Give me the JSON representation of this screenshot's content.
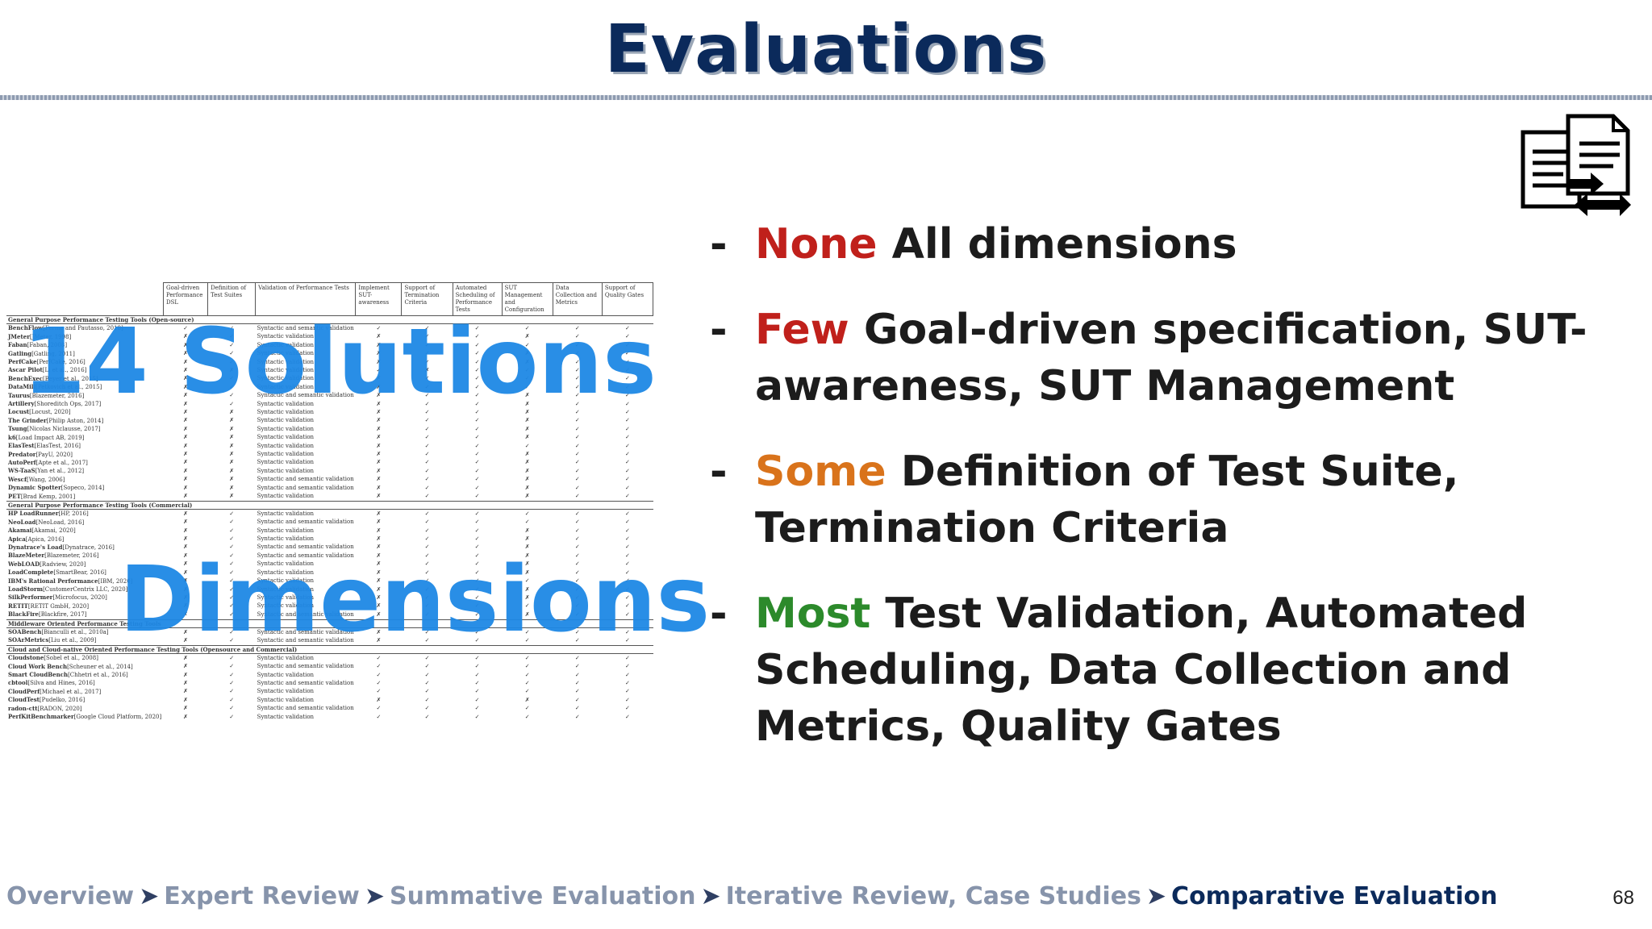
{
  "title": "Evaluations",
  "bullets": [
    {
      "dash": "-",
      "keyword": "None",
      "text": " All dimensions",
      "color": "#c0201b"
    },
    {
      "dash": "-",
      "keyword": "Few",
      "text": " Goal-driven specification, SUT-awareness, SUT Management",
      "color": "#c0201b"
    },
    {
      "dash": "-",
      "keyword": "Some",
      "text": " Definition of Test Suite, Termination Criteria",
      "color": "#d9731b"
    },
    {
      "dash": "-",
      "keyword": "Most",
      "text": " Test Validation, Automated Scheduling, Data Collection and Metrics, Quality Gates",
      "color": "#2c8a2b"
    }
  ],
  "overlay": {
    "solutions": "14 Solutions",
    "dimensions": "Dimensions"
  },
  "table": {
    "headers": [
      "Goal-driven Performance DSL",
      "Definition of Test Suites",
      "Validation of Performance Tests",
      "Implement SUT-awareness",
      "Support of Termination Criteria",
      "Automated Scheduling of Performance Tests",
      "SUT Management and Configuration",
      "Data Collection and Metrics",
      "Support of Quality Gates"
    ],
    "sections": [
      {
        "category": "General Purpose Performance Testing Tools (Open-source)",
        "rows": [
          {
            "name": "BenchFlow",
            "ref": "[Ferme and Pautasso, 2018]",
            "marks": [
              "✓",
              "✓",
              "Syntactic and semantic validation",
              "✓",
              "✓",
              "✓",
              "✓",
              "✓",
              "✓"
            ]
          },
          {
            "name": "JMeter",
            "ref": "[JMeter, 1998]",
            "marks": [
              "✗",
              "✓",
              "Syntactic validation",
              "✗",
              "✓",
              "✓",
              "✗",
              "✓",
              "✓"
            ]
          },
          {
            "name": "Faban",
            "ref": "[Faban, 2008]",
            "marks": [
              "✗",
              "✓",
              "Syntactic validation",
              "✗",
              "✓",
              "✓",
              "✓",
              "✓",
              "✓"
            ]
          },
          {
            "name": "Gatling",
            "ref": "[Gatling, 2011]",
            "marks": [
              "✗",
              "✓",
              "Syntactic validation",
              "✗",
              "✓",
              "✓",
              "✗",
              "✓",
              "✓"
            ]
          },
          {
            "name": "PerfCake",
            "ref": "[PerfCake, 2016]",
            "marks": [
              "✗",
              "✓",
              "Syntactic validation",
              "✗",
              "✓",
              "✓",
              "✗",
              "✓",
              "✓"
            ]
          },
          {
            "name": "Ascar Pilot",
            "ref": "[Li et al., 2016]",
            "marks": [
              "✗",
              "✗",
              "Syntactic validation",
              "✓",
              "✗",
              "✓",
              "✓",
              "✓",
              "✓"
            ]
          },
          {
            "name": "BenchExec",
            "ref": "[Beyer et al., 2015]",
            "marks": [
              "✗",
              "✓",
              "Syntactic validation",
              "✗",
              "✓",
              "✓",
              "✓",
              "✓",
              "✓"
            ]
          },
          {
            "name": "DataMill",
            "ref": "[Petkovich et al., 2015]",
            "marks": [
              "✗",
              "✓",
              "Syntactic validation",
              "✗",
              "✓",
              "✓",
              "✓",
              "✓",
              "✓"
            ]
          },
          {
            "name": "Taurus",
            "ref": "[Blazemeter, 2016]",
            "marks": [
              "✗",
              "✓",
              "Syntactic and semantic validation",
              "✗",
              "✓",
              "✓",
              "✗",
              "✓",
              "✓"
            ]
          },
          {
            "name": "Artillery",
            "ref": "[Shoreditch Ops, 2017]",
            "marks": [
              "✗",
              "✓",
              "Syntactic validation",
              "✗",
              "✓",
              "✓",
              "✗",
              "✓",
              "✓"
            ]
          },
          {
            "name": "Locust",
            "ref": "[Locust, 2020]",
            "marks": [
              "✗",
              "✗",
              "Syntactic validation",
              "✗",
              "✓",
              "✓",
              "✗",
              "✓",
              "✓"
            ]
          },
          {
            "name": "The Grinder",
            "ref": "[Philip Aston, 2014]",
            "marks": [
              "✗",
              "✗",
              "Syntactic validation",
              "✗",
              "✓",
              "✓",
              "✗",
              "✓",
              "✓"
            ]
          },
          {
            "name": "Tsung",
            "ref": "[Nicolas Niclausse, 2017]",
            "marks": [
              "✗",
              "✗",
              "Syntactic validation",
              "✗",
              "✓",
              "✓",
              "✗",
              "✓",
              "✓"
            ]
          },
          {
            "name": "k6",
            "ref": "[Load Impact AB, 2019]",
            "marks": [
              "✗",
              "✗",
              "Syntactic validation",
              "✗",
              "✓",
              "✓",
              "✗",
              "✓",
              "✓"
            ]
          },
          {
            "name": "ElasTest",
            "ref": "[ElasTest, 2016]",
            "marks": [
              "✗",
              "✗",
              "Syntactic validation",
              "✗",
              "✓",
              "✓",
              "✓",
              "✓",
              "✓"
            ]
          },
          {
            "name": "Predator",
            "ref": "[PayU, 2020]",
            "marks": [
              "✗",
              "✗",
              "Syntactic validation",
              "✗",
              "✓",
              "✓",
              "✗",
              "✓",
              "✓"
            ]
          },
          {
            "name": "AutoPerf",
            "ref": "[Apte et al., 2017]",
            "marks": [
              "✗",
              "✗",
              "Syntactic validation",
              "✗",
              "✓",
              "✓",
              "✗",
              "✓",
              "✓"
            ]
          },
          {
            "name": "WS-TaaS",
            "ref": "[Yan et al., 2012]",
            "marks": [
              "✗",
              "✗",
              "Syntactic validation",
              "✗",
              "✓",
              "✓",
              "✗",
              "✓",
              "✓"
            ]
          },
          {
            "name": "Wescf",
            "ref": "[Wang, 2006]",
            "marks": [
              "✗",
              "✗",
              "Syntactic and semantic validation",
              "✗",
              "✓",
              "✓",
              "✗",
              "✓",
              "✓"
            ]
          },
          {
            "name": "Dynamic Spotter",
            "ref": "[Sopeco, 2014]",
            "marks": [
              "✗",
              "✗",
              "Syntactic and semantic validation",
              "✗",
              "✓",
              "✓",
              "✗",
              "✓",
              "✓"
            ]
          },
          {
            "name": "PET",
            "ref": "[Brad Kemp, 2001]",
            "marks": [
              "✗",
              "✗",
              "Syntactic validation",
              "✗",
              "✓",
              "✓",
              "✗",
              "✓",
              "✓"
            ]
          }
        ]
      },
      {
        "category": "General Purpose Performance Testing Tools (Commercial)",
        "rows": [
          {
            "name": "HP LoadRunner",
            "ref": "[HP, 2016]",
            "marks": [
              "✗",
              "✓",
              "Syntactic validation",
              "✗",
              "✓",
              "✓",
              "✓",
              "✓",
              "✓"
            ]
          },
          {
            "name": "NeoLoad",
            "ref": "[NeoLoad, 2016]",
            "marks": [
              "✗",
              "✓",
              "Syntactic and semantic validation",
              "✗",
              "✓",
              "✓",
              "✓",
              "✓",
              "✓"
            ]
          },
          {
            "name": "Akamai",
            "ref": "[Akamai, 2020]",
            "marks": [
              "✗",
              "✓",
              "Syntactic validation",
              "✗",
              "✓",
              "✓",
              "✗",
              "✓",
              "✓"
            ]
          },
          {
            "name": "Apica",
            "ref": "[Apica, 2016]",
            "marks": [
              "✗",
              "✓",
              "Syntactic validation",
              "✗",
              "✓",
              "✓",
              "✗",
              "✓",
              "✓"
            ]
          },
          {
            "name": "Dynatrace's Load",
            "ref": "[Dynatrace, 2016]",
            "marks": [
              "✗",
              "✓",
              "Syntactic and semantic validation",
              "✗",
              "✓",
              "✓",
              "✗",
              "✓",
              "✓"
            ]
          },
          {
            "name": "BlazeMeter",
            "ref": "[Blazemeter, 2016]",
            "marks": [
              "✗",
              "✓",
              "Syntactic and semantic validation",
              "✗",
              "✓",
              "✓",
              "✗",
              "✓",
              "✓"
            ]
          },
          {
            "name": "WebLOAD",
            "ref": "[Radview, 2020]",
            "marks": [
              "✗",
              "✓",
              "Syntactic validation",
              "✗",
              "✓",
              "✓",
              "✗",
              "✓",
              "✓"
            ]
          },
          {
            "name": "LoadComplete",
            "ref": "[SmartBear, 2016]",
            "marks": [
              "✗",
              "✓",
              "Syntactic validation",
              "✗",
              "✓",
              "✓",
              "✗",
              "✓",
              "✓"
            ]
          },
          {
            "name": "IBM's Rational Performance",
            "ref": "[IBM, 2020]",
            "marks": [
              "✗",
              "✓",
              "Syntactic validation",
              "✗",
              "✓",
              "✓",
              "✓",
              "✓",
              "✓"
            ]
          },
          {
            "name": "LoadStorm",
            "ref": "[CustomerCentrix LLC, 2020]",
            "marks": [
              "✗",
              "✓",
              "Syntactic validation",
              "✗",
              "✓",
              "✓",
              "✗",
              "✓",
              "✓"
            ]
          },
          {
            "name": "SilkPerformer",
            "ref": "[Microfocus, 2020]",
            "marks": [
              "✗",
              "✓",
              "Syntactic validation",
              "✗",
              "✓",
              "✓",
              "✗",
              "✓",
              "✓"
            ]
          },
          {
            "name": "RETIT",
            "ref": "[RETIT GmbH, 2020]",
            "marks": [
              "✗",
              "✓",
              "Syntactic validation",
              "✗",
              "✓",
              "✓",
              "✓",
              "✓",
              "✓"
            ]
          },
          {
            "name": "BlackFire",
            "ref": "[Blackfire, 2017]",
            "marks": [
              "✗",
              "✓",
              "Syntactic and semantic validation",
              "✗",
              "✓",
              "✓",
              "✗",
              "✓",
              "✓"
            ]
          }
        ]
      },
      {
        "category": "Middleware Oriented Performance Testing Tools",
        "rows": [
          {
            "name": "SOABench",
            "ref": "[Bianculli et al., 2010a]",
            "marks": [
              "✗",
              "✓",
              "Syntactic and semantic validation",
              "✗",
              "✓",
              "✓",
              "✓",
              "✓",
              "✓"
            ]
          },
          {
            "name": "SOArMetrics",
            "ref": "[Liu et al., 2009]",
            "marks": [
              "✗",
              "✓",
              "Syntactic and semantic validation",
              "✗",
              "✓",
              "✓",
              "✓",
              "✓",
              "✓"
            ]
          }
        ]
      },
      {
        "category": "Cloud and Cloud-native Oriented Performance Testing Tools (Opensource and Commercial)",
        "rows": [
          {
            "name": "Cloudstone",
            "ref": "[Sobel et al., 2008]",
            "marks": [
              "✗",
              "✓",
              "Syntactic validation",
              "✓",
              "✓",
              "✓",
              "✓",
              "✓",
              "✓"
            ]
          },
          {
            "name": "Cloud Work Bench",
            "ref": "[Scheuner et al., 2014]",
            "marks": [
              "✗",
              "✓",
              "Syntactic and semantic validation",
              "✓",
              "✓",
              "✓",
              "✓",
              "✓",
              "✓"
            ]
          },
          {
            "name": "Smart CloudBench",
            "ref": "[Chhetri et al., 2016]",
            "marks": [
              "✗",
              "✓",
              "Syntactic validation",
              "✓",
              "✓",
              "✓",
              "✓",
              "✓",
              "✓"
            ]
          },
          {
            "name": "cbtool",
            "ref": "[Silva and Hines, 2016]",
            "marks": [
              "✗",
              "✓",
              "Syntactic and semantic validation",
              "✓",
              "✓",
              "✓",
              "✓",
              "✓",
              "✓"
            ]
          },
          {
            "name": "CloudPerf",
            "ref": "[Michael et al., 2017]",
            "marks": [
              "✗",
              "✓",
              "Syntactic validation",
              "✓",
              "✓",
              "✓",
              "✓",
              "✓",
              "✓"
            ]
          },
          {
            "name": "CloudTest",
            "ref": "[Pudelko, 2016]",
            "marks": [
              "✗",
              "✓",
              "Syntactic validation",
              "✗",
              "✓",
              "✓",
              "✗",
              "✓",
              "✓"
            ]
          },
          {
            "name": "radon-ctt",
            "ref": "[RADON, 2020]",
            "marks": [
              "✗",
              "✓",
              "Syntactic and semantic validation",
              "✓",
              "✓",
              "✓",
              "✓",
              "✓",
              "✓"
            ]
          },
          {
            "name": "PerfKitBenchmarker",
            "ref": "[Google Cloud Platform, 2020]",
            "marks": [
              "✗",
              "✓",
              "Syntactic validation",
              "✓",
              "✓",
              "✓",
              "✓",
              "✓",
              "✓"
            ]
          }
        ]
      }
    ]
  },
  "breadcrumb": {
    "items": [
      "Overview",
      "Expert Review",
      "Summative Evaluation",
      "Iterative Review, Case Studies",
      "Comparative Evaluation"
    ],
    "separator": "➤",
    "current_index": 4
  },
  "page_number": "68",
  "icon": "document-compare-icon"
}
